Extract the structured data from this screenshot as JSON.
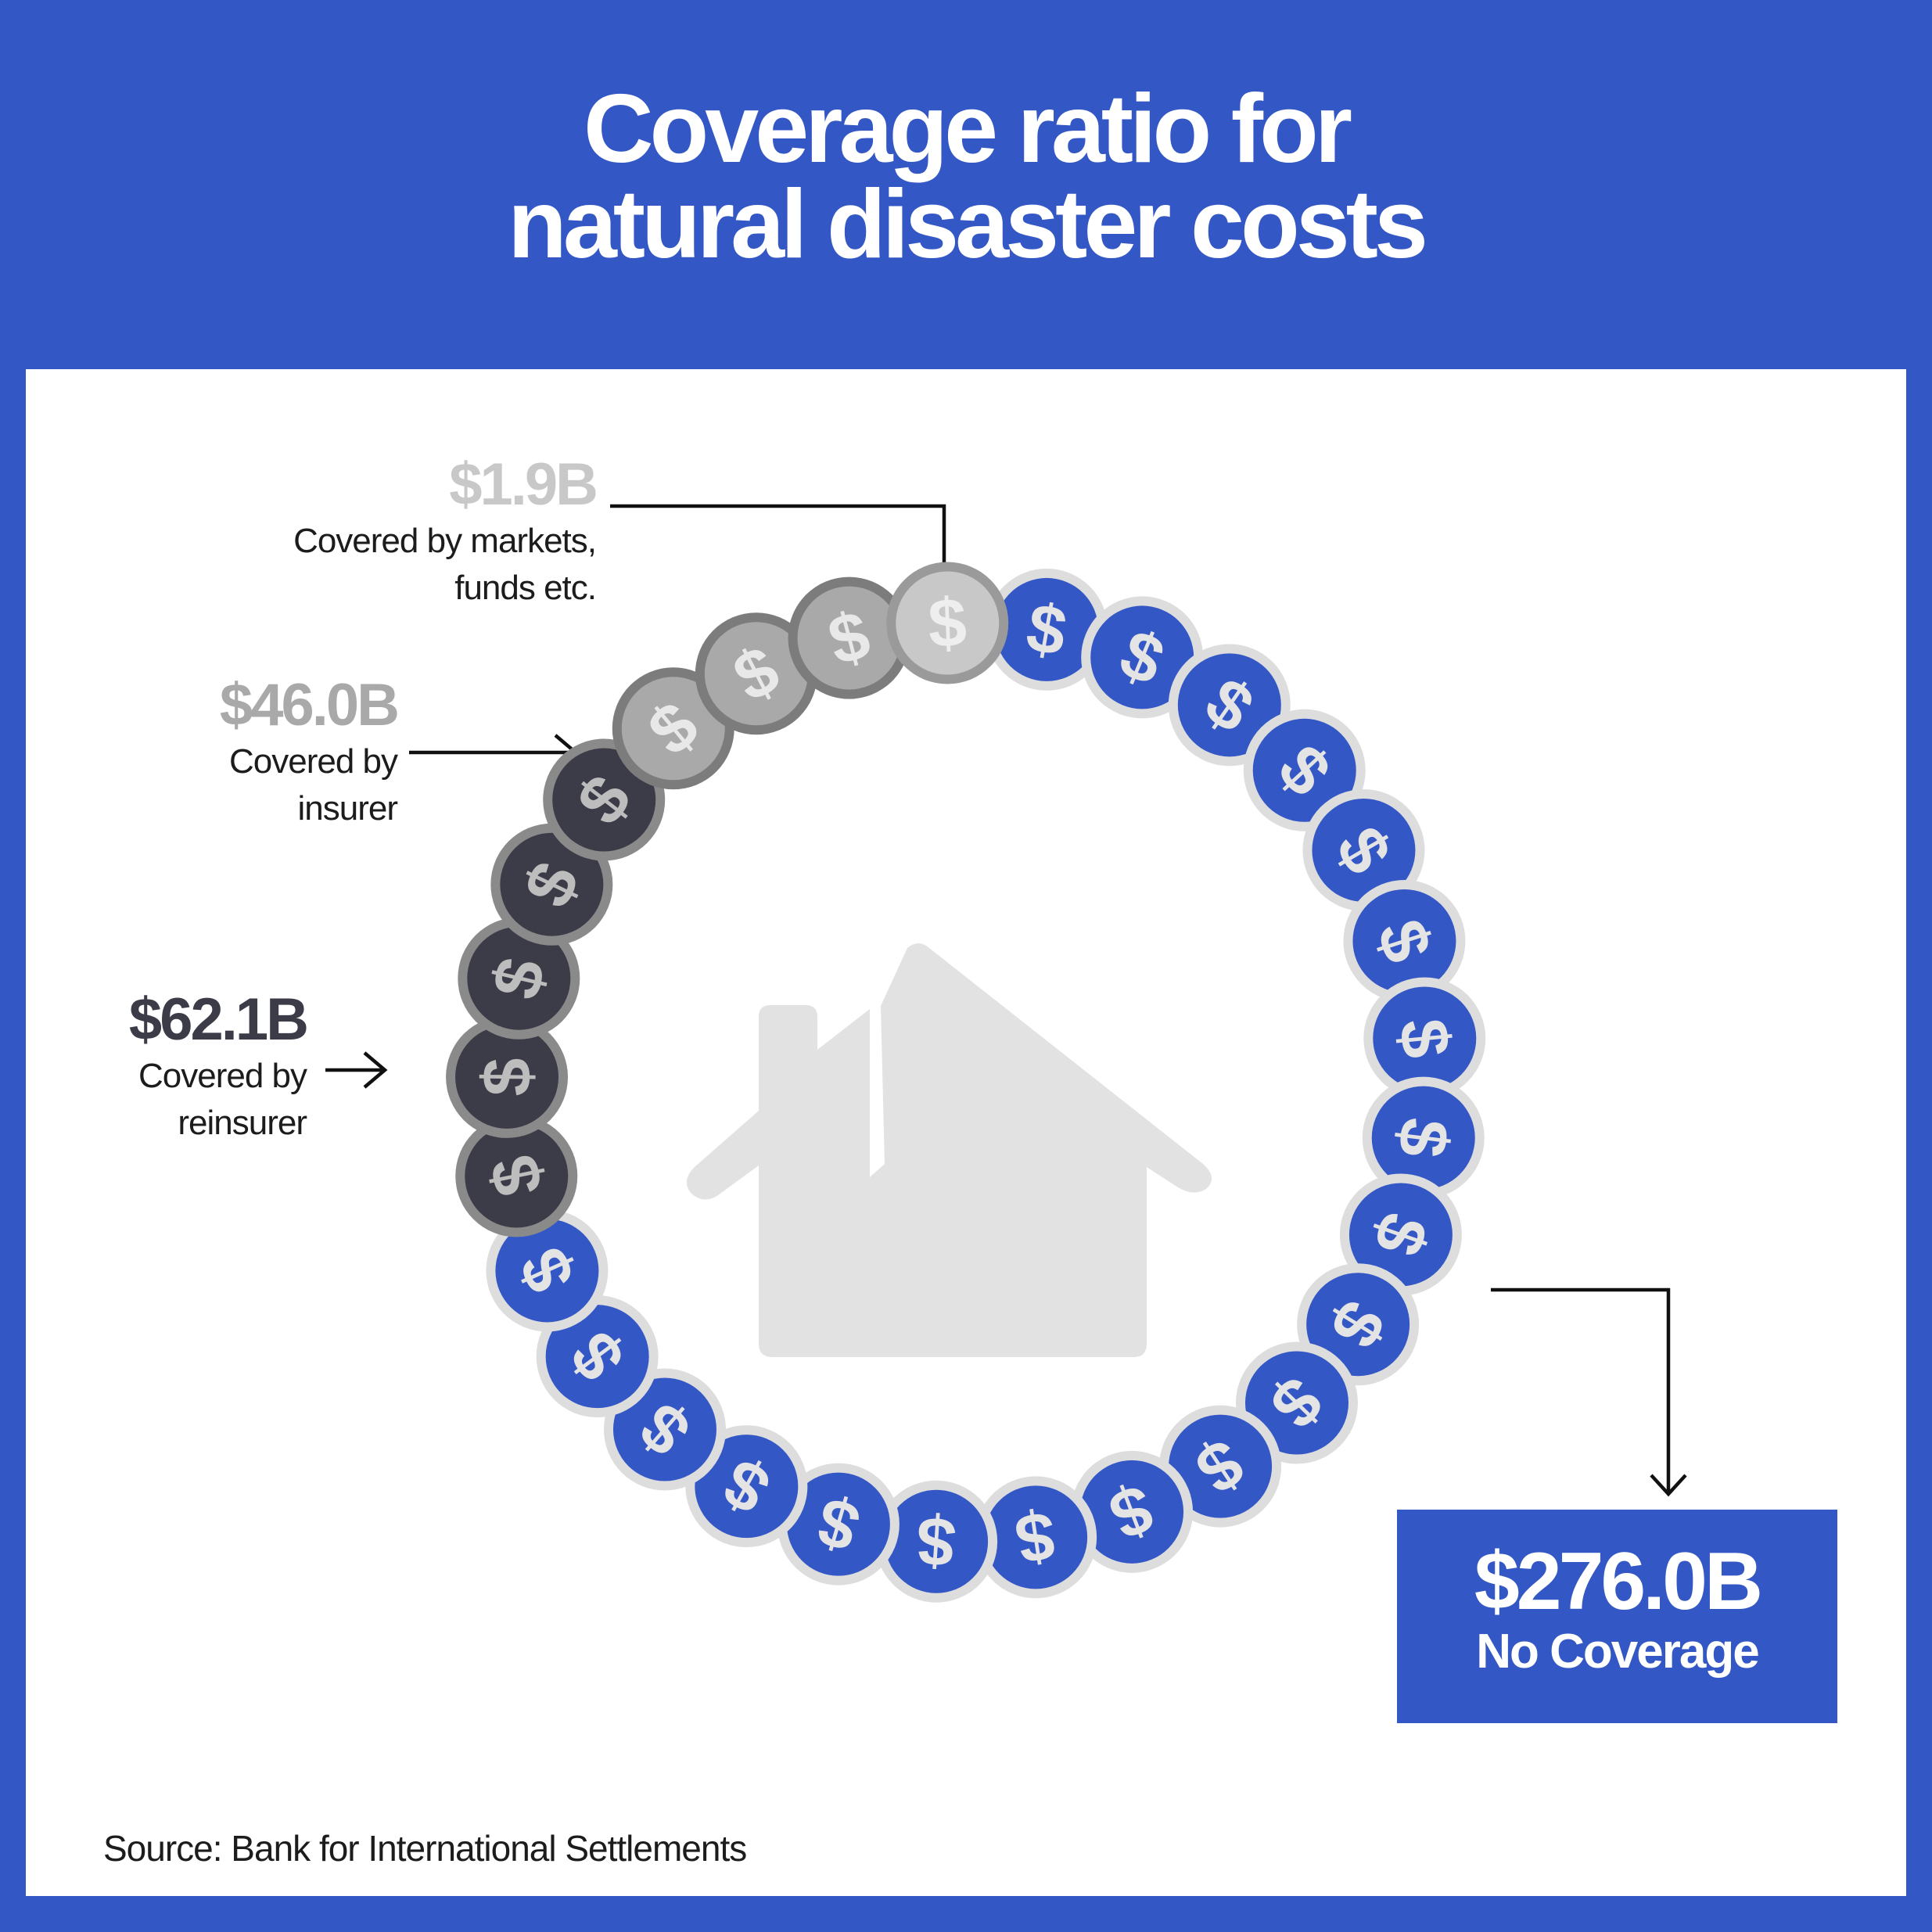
{
  "header": {
    "title_line1": "Coverage ratio for",
    "title_line2": "natural disaster costs"
  },
  "chart_data": {
    "type": "pie",
    "title": "Coverage ratio for natural disaster costs",
    "unit": "$B",
    "segments": [
      {
        "amount": "$276.0B",
        "label": "No Coverage",
        "value": 276.0,
        "color": "#3457c6"
      },
      {
        "amount": "$62.1B",
        "label": "Covered by reinsurer",
        "value": 62.1,
        "color": "#3c3c48"
      },
      {
        "amount": "$46.0B",
        "label": "Covered by insurer",
        "value": 46.0,
        "color": "#a9a9a9"
      },
      {
        "amount": "$1.9B",
        "label": "Covered by markets, funds etc.",
        "value": 1.9,
        "color": "#c8c8c8"
      }
    ],
    "labels": {
      "markets_desc_line1": "Covered by markets,",
      "markets_desc_line2": "funds etc.",
      "insurer_desc_line1": "Covered by",
      "insurer_desc_line2": "insurer",
      "reinsurer_desc_line1": "Covered by",
      "reinsurer_desc_line2": "reinsurer"
    },
    "coin_symbol": "$",
    "center_icon": "house-damage-icon"
  },
  "source": "Source: Bank for International Settlements"
}
